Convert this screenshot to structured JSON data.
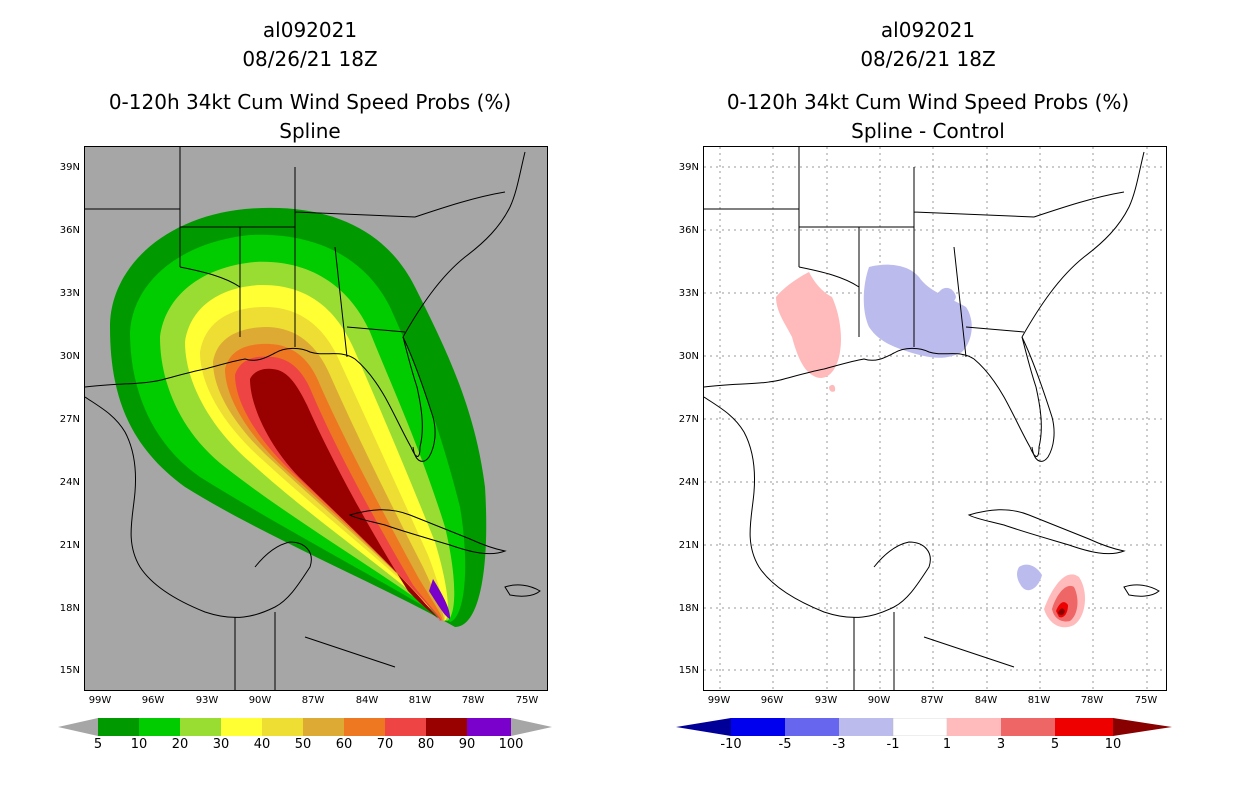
{
  "left_panel": {
    "storm_id": "al092021",
    "datetime": "08/26/21 18Z",
    "product": "0-120h 34kt Cum Wind Speed Probs (%)",
    "subtitle": "Spline",
    "colorbar_labels": [
      "5",
      "10",
      "20",
      "30",
      "40",
      "50",
      "60",
      "70",
      "80",
      "90",
      "100"
    ],
    "colors": [
      "#009a00",
      "#00cc00",
      "#99dd33",
      "#ffff33",
      "#eedd33",
      "#ddaa33",
      "#ee7722",
      "#ee4444",
      "#990000",
      "#7a00cc"
    ]
  },
  "right_panel": {
    "storm_id": "al092021",
    "datetime": "08/26/21 18Z",
    "product": "0-120h 34kt Cum Wind Speed Probs (%)",
    "subtitle": "Spline - Control",
    "colorbar_labels": [
      "-10",
      "-5",
      "-3",
      "-1",
      "1",
      "3",
      "5",
      "10"
    ],
    "colors": [
      "#000099",
      "#0000ee",
      "#6666ee",
      "#bbbbee",
      "#ffffff",
      "#ffbbbb",
      "#ee6666",
      "#ee0000",
      "#880000"
    ]
  },
  "lat_labels": [
    "39N",
    "36N",
    "33N",
    "30N",
    "27N",
    "24N",
    "21N",
    "18N",
    "15N"
  ],
  "lon_labels": [
    "99W",
    "96W",
    "93W",
    "90W",
    "87W",
    "84W",
    "81W",
    "78W",
    "75W"
  ]
}
